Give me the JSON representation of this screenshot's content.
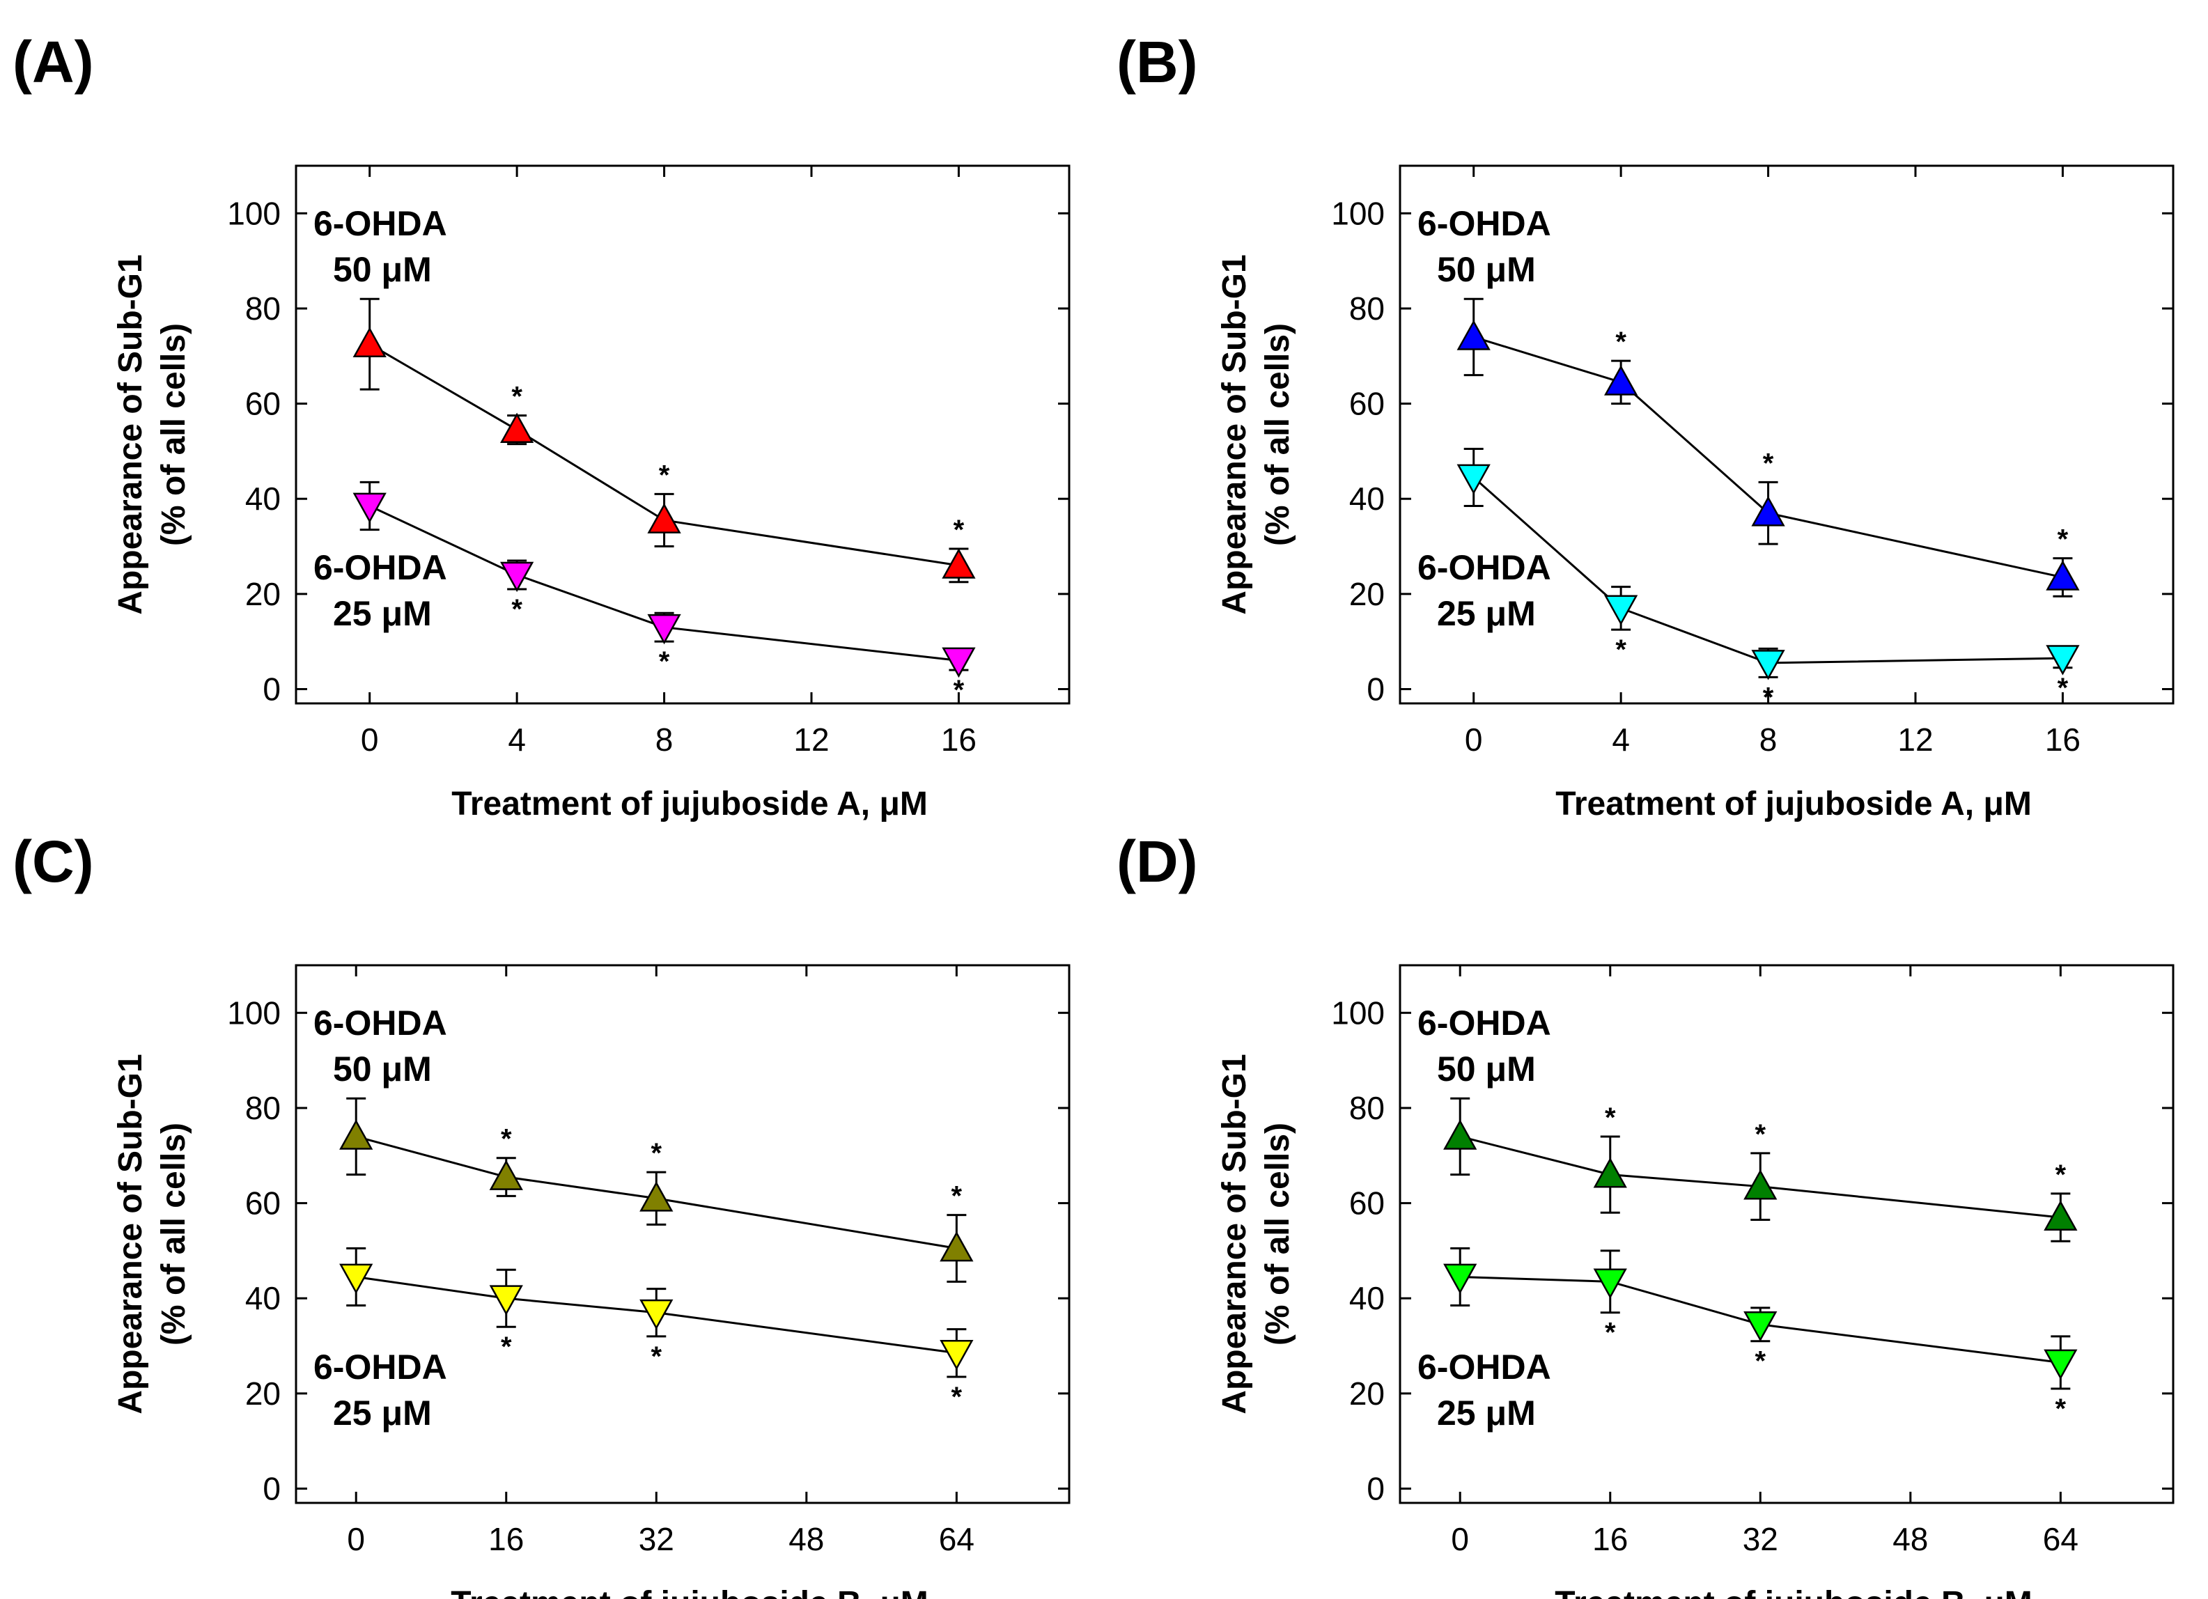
{
  "chart_data": [
    {
      "panel": "(A)",
      "type": "line",
      "x": [
        0,
        4,
        8,
        16
      ],
      "xticks": [
        "0",
        "4",
        "8",
        "12",
        "16"
      ],
      "xtick_values": [
        0,
        4,
        8,
        12,
        16
      ],
      "xlim": [
        -2,
        19
      ],
      "yticks": [
        "0",
        "20",
        "40",
        "60",
        "80",
        "100"
      ],
      "ytick_values": [
        0,
        20,
        40,
        60,
        80,
        100
      ],
      "ylim": [
        -3,
        110
      ],
      "xlabel": "Treatment of jujuboside A, μM",
      "ylabel_line1": "Appearance of Sub-G1",
      "ylabel_line2": "(% of all cells)",
      "annotation_top": [
        "6-OHDA",
        "50 μM"
      ],
      "annotation_bottom": [
        "6-OHDA",
        "25 μM"
      ],
      "series": [
        {
          "marker": "triangle-up",
          "color": "#ff0000",
          "values": [
            72.5,
            54.5,
            35.5,
            26
          ],
          "errors": [
            9.5,
            3,
            5.5,
            3.5
          ],
          "significance": [
            "",
            "*",
            "*",
            "*"
          ]
        },
        {
          "marker": "triangle-down",
          "color": "#ff00ff",
          "values": [
            38.5,
            24,
            13,
            6
          ],
          "errors": [
            5,
            3,
            3,
            2
          ],
          "significance": [
            "",
            "*",
            "*",
            "*"
          ]
        }
      ]
    },
    {
      "panel": "(B)",
      "type": "line",
      "x": [
        0,
        4,
        8,
        16
      ],
      "xticks": [
        "0",
        "4",
        "8",
        "12",
        "16"
      ],
      "xtick_values": [
        0,
        4,
        8,
        12,
        16
      ],
      "xlim": [
        -2,
        19
      ],
      "yticks": [
        "0",
        "20",
        "40",
        "60",
        "80",
        "100"
      ],
      "ytick_values": [
        0,
        20,
        40,
        60,
        80,
        100
      ],
      "ylim": [
        -3,
        110
      ],
      "xlabel": "Treatment of jujuboside A, μM",
      "ylabel_line1": "Appearance of Sub-G1",
      "ylabel_line2": "(% of all cells)",
      "annotation_top": [
        "6-OHDA",
        "50 μM"
      ],
      "annotation_bottom": [
        "6-OHDA",
        "25 μM"
      ],
      "series": [
        {
          "marker": "triangle-up",
          "color": "#0000ff",
          "values": [
            74,
            64.5,
            37,
            23.5
          ],
          "errors": [
            8,
            4.5,
            6.5,
            4
          ],
          "significance": [
            "",
            "*",
            "*",
            "*"
          ]
        },
        {
          "marker": "triangle-down",
          "color": "#00ffff",
          "values": [
            44.5,
            17,
            5.5,
            6.5
          ],
          "errors": [
            6,
            4.5,
            3,
            2
          ],
          "significance": [
            "",
            "*",
            "*",
            "*"
          ]
        }
      ]
    },
    {
      "panel": "(C)",
      "type": "line",
      "x": [
        0,
        16,
        32,
        64
      ],
      "xticks": [
        "0",
        "16",
        "32",
        "48",
        "64"
      ],
      "xtick_values": [
        0,
        16,
        32,
        48,
        64
      ],
      "xlim": [
        -6.4,
        76
      ],
      "yticks": [
        "0",
        "20",
        "40",
        "60",
        "80",
        "100"
      ],
      "ytick_values": [
        0,
        20,
        40,
        60,
        80,
        100
      ],
      "ylim": [
        -3,
        110
      ],
      "xlabel": "Treatment of jujuboside B, μM",
      "ylabel_line1": "Appearance of Sub-G1",
      "ylabel_line2": "(% of all cells)",
      "annotation_top": [
        "6-OHDA",
        "50 μM"
      ],
      "annotation_bottom": [
        "6-OHDA",
        "25 μM"
      ],
      "series": [
        {
          "marker": "triangle-up",
          "color": "#808000",
          "values": [
            74,
            65.5,
            61,
            50.5
          ],
          "errors": [
            8,
            4,
            5.5,
            7
          ],
          "significance": [
            "",
            "*",
            "*",
            "*"
          ]
        },
        {
          "marker": "triangle-down",
          "color": "#ffff00",
          "values": [
            44.5,
            40,
            37,
            28.5
          ],
          "errors": [
            6,
            6,
            5,
            5
          ],
          "significance": [
            "",
            "*",
            "*",
            "*"
          ]
        }
      ]
    },
    {
      "panel": "(D)",
      "type": "line",
      "x": [
        0,
        16,
        32,
        64
      ],
      "xticks": [
        "0",
        "16",
        "32",
        "48",
        "64"
      ],
      "xtick_values": [
        0,
        16,
        32,
        48,
        64
      ],
      "xlim": [
        -6.4,
        76
      ],
      "yticks": [
        "0",
        "20",
        "40",
        "60",
        "80",
        "100"
      ],
      "ytick_values": [
        0,
        20,
        40,
        60,
        80,
        100
      ],
      "ylim": [
        -3,
        110
      ],
      "xlabel": "Treatment of jujuboside B, μM",
      "ylabel_line1": "Appearance of Sub-G1",
      "ylabel_line2": "(% of all cells)",
      "annotation_top": [
        "6-OHDA",
        "50 μM"
      ],
      "annotation_bottom": [
        "6-OHDA",
        "25 μM"
      ],
      "series": [
        {
          "marker": "triangle-up",
          "color": "#008000",
          "values": [
            74,
            66,
            63.5,
            57
          ],
          "errors": [
            8,
            8,
            7,
            5
          ],
          "significance": [
            "",
            "*",
            "*",
            "*"
          ]
        },
        {
          "marker": "triangle-down",
          "color": "#00ff00",
          "values": [
            44.5,
            43.5,
            34.5,
            26.5
          ],
          "errors": [
            6,
            6.5,
            3.5,
            5.5
          ],
          "significance": [
            "",
            "*",
            "*",
            "*"
          ]
        }
      ]
    }
  ]
}
